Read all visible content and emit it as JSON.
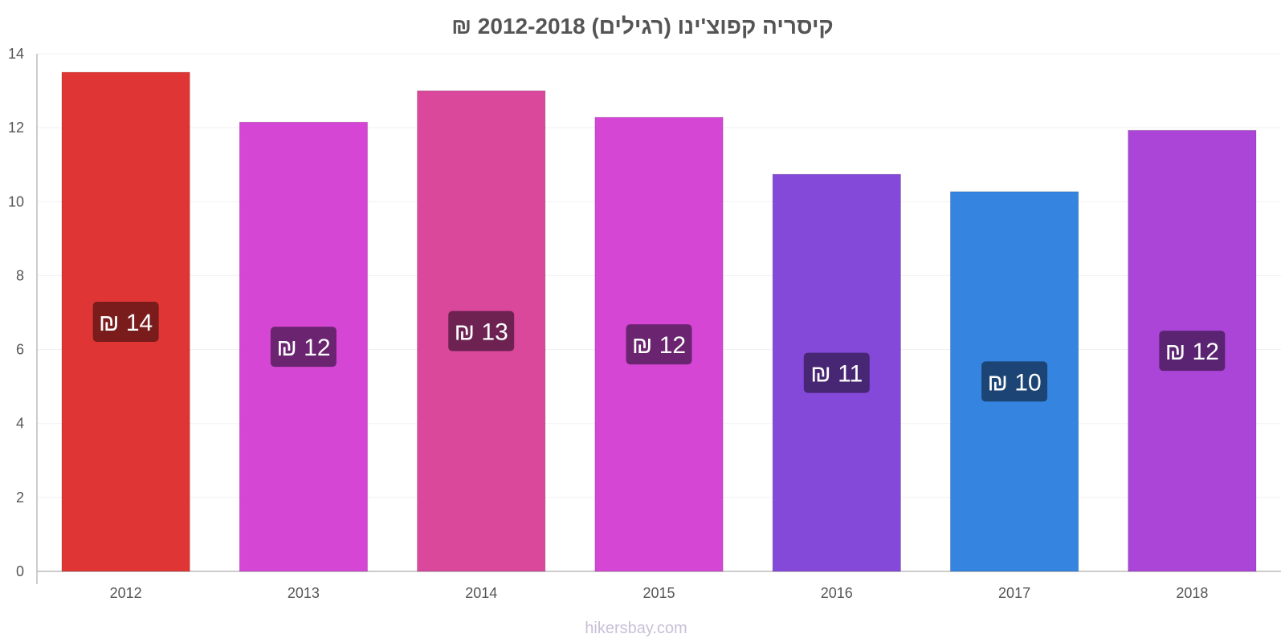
{
  "chart_data": {
    "type": "bar",
    "title": "קיסריה קפוצ'ינו (רגילים) 2012-2018 ₪",
    "xlabel": "",
    "ylabel": "",
    "ylim": [
      0,
      14
    ],
    "yticks": [
      "0",
      "2",
      "4",
      "6",
      "8",
      "10",
      "12",
      "14"
    ],
    "grid": true,
    "legend": "none",
    "categories": [
      "2012",
      "2013",
      "2014",
      "2015",
      "2016",
      "2017",
      "2018"
    ],
    "values": [
      13.5,
      12.15,
      13.0,
      12.28,
      10.74,
      10.27,
      11.93
    ],
    "data_labels": [
      "₪ 14",
      "₪ 12",
      "₪ 13",
      "₪ 12",
      "₪ 11",
      "₪ 10",
      "₪ 12"
    ],
    "bar_colors": [
      "#e03535",
      "#d646d4",
      "#d9489b",
      "#d646d4",
      "#8549da",
      "#3584e0",
      "#ab45d8"
    ],
    "label_colors": [
      "#7a1c1c",
      "#6a2470",
      "#6e2252",
      "#6a2470",
      "#472673",
      "#1c4575",
      "#5a2473"
    ]
  },
  "watermark": "hikersbay.com"
}
